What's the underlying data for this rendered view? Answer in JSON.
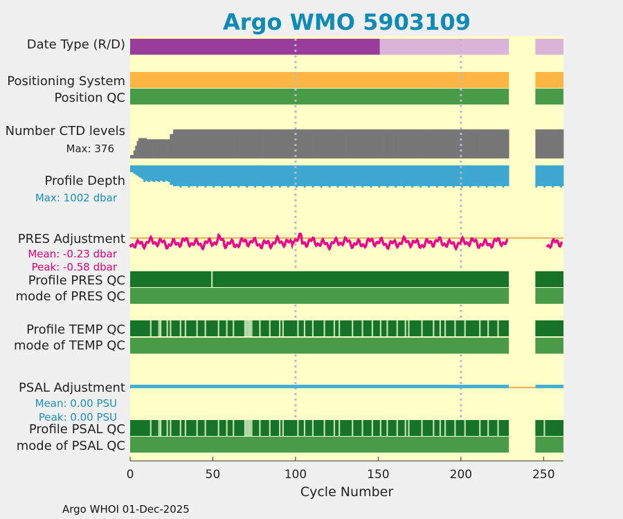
{
  "chart_data": {
    "type": "timeline",
    "title": "Argo WMO 5903109",
    "xlabel": "Cycle Number",
    "xlim": [
      0,
      262
    ],
    "xticks": [
      0,
      50,
      100,
      150,
      200,
      250
    ],
    "grid_lines": [
      100,
      200
    ],
    "data_gap": [
      229,
      245
    ],
    "footer": "Argo WHOI 01-Dec-2025",
    "rows": {
      "date_type": {
        "label": "Date Type (R/D)",
        "segments": [
          {
            "from": 0,
            "to": 151,
            "value": "D"
          },
          {
            "from": 151,
            "to": 229,
            "value": "R"
          },
          {
            "from": 245,
            "to": 262,
            "value": "R"
          }
        ]
      },
      "positioning_system": {
        "label": "Positioning System"
      },
      "position_qc": {
        "label": "Position QC"
      },
      "ctd_levels": {
        "label": "Number CTD levels",
        "stat": "Max: 376",
        "max": 376,
        "typical_min": 330
      },
      "profile_depth": {
        "label": "Profile Depth",
        "stat": "Max: 1002 dbar",
        "max": 1002
      },
      "pres_adjustment": {
        "label": "PRES Adjustment",
        "mean": "Mean: -0.23 dbar",
        "peak": "Peak: -0.58 dbar",
        "mean_value": -0.23,
        "peak_value": -0.58
      },
      "profile_pres_qc": {
        "label": "Profile PRES QC",
        "light_cycles": [
          49
        ]
      },
      "mode_pres_qc": {
        "label": "mode of PRES QC"
      },
      "profile_temp_qc": {
        "label": "Profile TEMP QC",
        "light_cycles": [
          12,
          17,
          18,
          22,
          24,
          30,
          33,
          40,
          45,
          53,
          58,
          62,
          69,
          70,
          71,
          72,
          73,
          78,
          84,
          90,
          92,
          101,
          105,
          110,
          117,
          123,
          126,
          134,
          140,
          146,
          151,
          155,
          161,
          166,
          168,
          176,
          183,
          187,
          190,
          196,
          202,
          211,
          216,
          222
        ]
      },
      "mode_temp_qc": {
        "label": "mode of TEMP QC"
      },
      "psal_adjustment": {
        "label": "PSAL Adjustment",
        "mean": "Mean: 0.00 PSU",
        "peak": "Peak: 0.00 PSU",
        "mean_value": 0.0,
        "peak_value": 0.0
      },
      "profile_psal_qc": {
        "label": "Profile PSAL QC",
        "light_cycles": [
          12,
          17,
          18,
          22,
          24,
          30,
          33,
          40,
          45,
          53,
          58,
          62,
          69,
          70,
          71,
          72,
          73,
          78,
          84,
          90,
          92,
          101,
          105,
          110,
          117,
          123,
          126,
          134,
          140,
          146,
          151,
          155,
          161,
          166,
          168,
          176,
          183,
          187,
          190,
          196,
          202,
          211,
          216,
          222,
          250
        ]
      },
      "mode_psal_qc": {
        "label": "mode of PSAL QC"
      }
    },
    "colors": {
      "plot_bg": "#ffffc8",
      "d_mode": "#993d9a",
      "r_mode": "#dab5d9",
      "positioning": "#fdb544",
      "position_qc": "#4a9b47",
      "ctd": "#777777",
      "depth": "#3ea8d0",
      "pres_adj": "#ec008c",
      "zero_line": "#f7b24a",
      "qc_good": "#167328",
      "qc_light": "#c3e0b0",
      "mode_qc": "#4a9b47",
      "psal_adj": "#47afd4",
      "title": "#0e8ab8",
      "cyan_text": "#1a8fbb",
      "magenta_text": "#e0007a"
    }
  }
}
